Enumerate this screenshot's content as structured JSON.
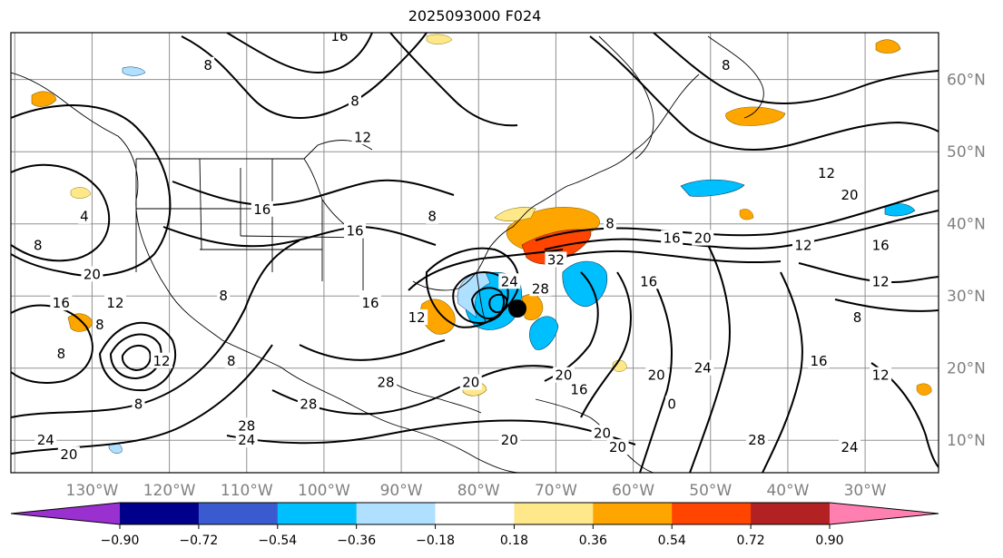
{
  "title": "2025093000 F024",
  "longitude_labels": [
    "130°W",
    "120°W",
    "110°W",
    "100°W",
    "90°W",
    "80°W",
    "70°W",
    "60°W",
    "50°W",
    "40°W",
    "30°W"
  ],
  "latitude_labels": [
    "60°N",
    "50°N",
    "40°N",
    "30°N",
    "20°N",
    "10°N"
  ],
  "colorbar": {
    "ticks": [
      "−0.90",
      "−0.72",
      "−0.54",
      "−0.36",
      "−0.18",
      "0.18",
      "0.36",
      "0.54",
      "0.72",
      "0.90"
    ],
    "colors": [
      "#9b30d0",
      "#00008b",
      "#3a5bd0",
      "#00bfff",
      "#b0e0ff",
      "#ffffff",
      "#ffe88a",
      "#ffa500",
      "#ff4500",
      "#b22222",
      "#ff80b0"
    ]
  },
  "contour_labels": [
    {
      "text": "16",
      "lon": -108,
      "lat": 42
    },
    {
      "text": "16",
      "lon": -96,
      "lat": 39
    },
    {
      "text": "8",
      "lon": -86,
      "lat": 41
    },
    {
      "text": "8",
      "lon": -63,
      "lat": 40
    },
    {
      "text": "16",
      "lon": -55,
      "lat": 38
    },
    {
      "text": "20",
      "lon": -51,
      "lat": 38
    },
    {
      "text": "12",
      "lon": -35,
      "lat": 47
    },
    {
      "text": "20",
      "lon": -32,
      "lat": 44
    },
    {
      "text": "16",
      "lon": -28,
      "lat": 37
    },
    {
      "text": "12",
      "lon": -38,
      "lat": 37
    },
    {
      "text": "12",
      "lon": -28,
      "lat": 32
    },
    {
      "text": "8",
      "lon": -31,
      "lat": 27
    },
    {
      "text": "16",
      "lon": -36,
      "lat": 21
    },
    {
      "text": "12",
      "lon": -28,
      "lat": 19
    },
    {
      "text": "24",
      "lon": -76,
      "lat": 32
    },
    {
      "text": "32",
      "lon": -70,
      "lat": 35
    },
    {
      "text": "28",
      "lon": -72,
      "lat": 31
    },
    {
      "text": "16",
      "lon": -58,
      "lat": 32
    },
    {
      "text": "16",
      "lon": -94,
      "lat": 29
    },
    {
      "text": "12",
      "lon": -88,
      "lat": 27
    },
    {
      "text": "20",
      "lon": -57,
      "lat": 19
    },
    {
      "text": "20",
      "lon": -69,
      "lat": 19
    },
    {
      "text": "16",
      "lon": -67,
      "lat": 17
    },
    {
      "text": "24",
      "lon": -51,
      "lat": 20
    },
    {
      "text": "20",
      "lon": -81,
      "lat": 18
    },
    {
      "text": "28",
      "lon": -92,
      "lat": 18
    },
    {
      "text": "28",
      "lon": -102,
      "lat": 15
    },
    {
      "text": "28",
      "lon": -110,
      "lat": 12
    },
    {
      "text": "24",
      "lon": -110,
      "lat": 10
    },
    {
      "text": "28",
      "lon": -44,
      "lat": 10
    },
    {
      "text": "24",
      "lon": -136,
      "lat": 10
    },
    {
      "text": "20",
      "lon": -133,
      "lat": 8
    },
    {
      "text": "24",
      "lon": -32,
      "lat": 9
    },
    {
      "text": "12",
      "lon": -127,
      "lat": 29
    },
    {
      "text": "16",
      "lon": -134,
      "lat": 29
    },
    {
      "text": "8",
      "lon": -137,
      "lat": 37
    },
    {
      "text": "4",
      "lon": -131,
      "lat": 41
    },
    {
      "text": "20",
      "lon": -130,
      "lat": 33
    },
    {
      "text": "8",
      "lon": -113,
      "lat": 30
    },
    {
      "text": "8",
      "lon": -112,
      "lat": 21
    },
    {
      "text": "12",
      "lon": -121,
      "lat": 21
    },
    {
      "text": "8",
      "lon": -129,
      "lat": 26
    },
    {
      "text": "8",
      "lon": -134,
      "lat": 22
    },
    {
      "text": "8",
      "lon": -124,
      "lat": 15
    },
    {
      "text": "8",
      "lon": -115,
      "lat": 62
    },
    {
      "text": "16",
      "lon": -98,
      "lat": 66
    },
    {
      "text": "12",
      "lon": -95,
      "lat": 52
    },
    {
      "text": "8",
      "lon": -48,
      "lat": 62
    },
    {
      "text": "8",
      "lon": -96,
      "lat": 57
    },
    {
      "text": "0",
      "lon": -55,
      "lat": 15
    },
    {
      "text": "20",
      "lon": -62,
      "lat": 9
    },
    {
      "text": "20",
      "lon": -64,
      "lat": 11
    },
    {
      "text": "20",
      "lon": -76,
      "lat": 10
    }
  ]
}
